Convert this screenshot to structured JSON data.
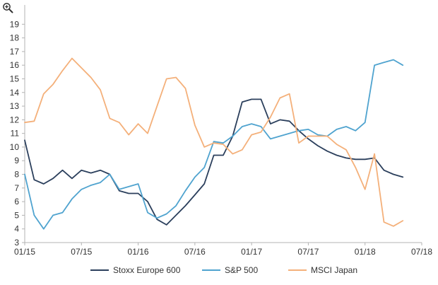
{
  "icons": {
    "zoom": "magnifier-plus-icon"
  },
  "chart_data": {
    "type": "line",
    "title": "",
    "xlabel": "",
    "ylabel": "",
    "ylim": [
      3,
      20
    ],
    "yticks": [
      3,
      4,
      5,
      6,
      7,
      8,
      9,
      10,
      11,
      12,
      13,
      14,
      15,
      16,
      17,
      18,
      19
    ],
    "xlim": [
      "01/15",
      "07/18"
    ],
    "xticks": [
      "01/15",
      "07/15",
      "01/16",
      "07/16",
      "01/17",
      "07/17",
      "01/18",
      "07/18"
    ],
    "grid": false,
    "legend_position": "bottom",
    "x": [
      "01/15",
      "02/15",
      "03/15",
      "04/15",
      "05/15",
      "06/15",
      "07/15",
      "08/15",
      "09/15",
      "10/15",
      "11/15",
      "12/15",
      "01/16",
      "02/16",
      "03/16",
      "04/16",
      "05/16",
      "06/16",
      "07/16",
      "08/16",
      "09/16",
      "10/16",
      "11/16",
      "12/16",
      "01/17",
      "02/17",
      "03/17",
      "04/17",
      "05/17",
      "06/17",
      "07/17",
      "08/17",
      "09/17",
      "10/17",
      "11/17",
      "12/17",
      "01/18",
      "02/18",
      "03/18",
      "04/18",
      "05/18"
    ],
    "series": [
      {
        "name": "Stoxx Europe 600",
        "color": "#2b3f5c",
        "values": [
          10.5,
          7.6,
          7.3,
          7.7,
          8.3,
          7.7,
          8.3,
          8.1,
          8.3,
          8.0,
          6.8,
          6.6,
          6.6,
          6.0,
          4.7,
          4.3,
          5.0,
          5.7,
          6.5,
          7.3,
          9.4,
          9.4,
          10.8,
          13.3,
          13.5,
          13.5,
          11.7,
          12.0,
          11.9,
          11.2,
          10.6,
          10.1,
          9.7,
          9.4,
          9.2,
          9.1,
          9.1,
          9.2,
          8.3,
          8.0,
          7.8
        ]
      },
      {
        "name": "S&P 500",
        "color": "#4fa3cf",
        "values": [
          8.0,
          5.0,
          4.0,
          5.0,
          5.2,
          6.2,
          6.9,
          7.2,
          7.4,
          8.0,
          6.9,
          7.1,
          7.3,
          5.2,
          4.8,
          5.1,
          5.7,
          6.8,
          7.8,
          8.5,
          10.4,
          10.3,
          10.8,
          11.5,
          11.7,
          11.5,
          10.6,
          10.8,
          11.0,
          11.2,
          11.3,
          10.9,
          10.8,
          11.3,
          11.5,
          11.2,
          11.8,
          16.0,
          16.2,
          16.4,
          16.0
        ]
      },
      {
        "name": "MSCI Japan",
        "color": "#f4b07a",
        "values": [
          11.8,
          11.9,
          13.9,
          14.6,
          15.6,
          16.5,
          15.8,
          15.1,
          14.2,
          12.1,
          11.8,
          10.9,
          11.7,
          11.0,
          13.0,
          15.0,
          15.1,
          14.3,
          11.6,
          10.0,
          10.3,
          10.2,
          9.5,
          9.8,
          10.9,
          11.1,
          12.2,
          13.6,
          13.9,
          10.3,
          10.8,
          10.8,
          10.8,
          10.2,
          9.8,
          8.5,
          6.9,
          9.5,
          4.5,
          4.2,
          4.6
        ]
      }
    ]
  }
}
